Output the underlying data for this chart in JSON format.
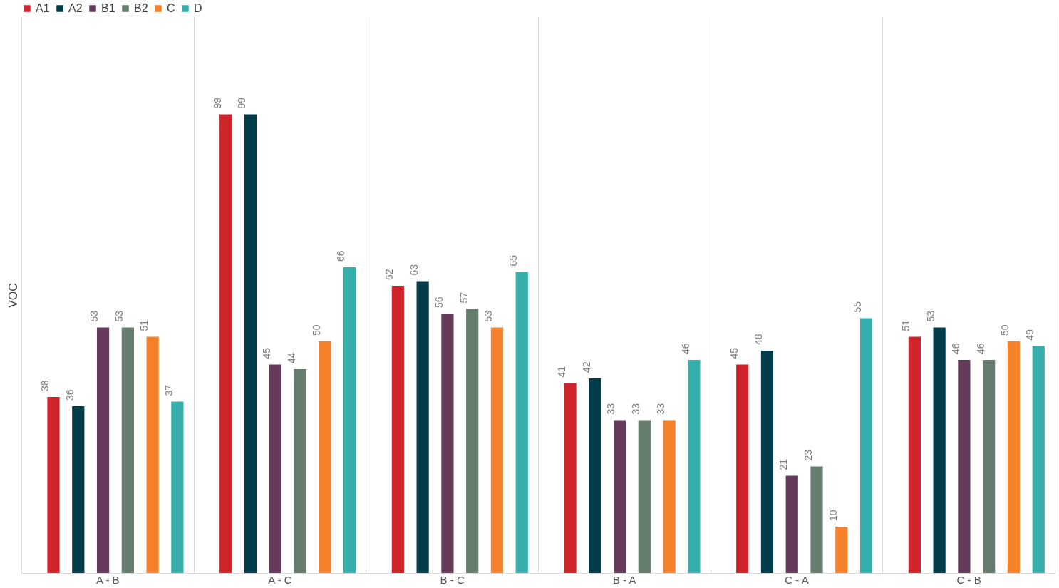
{
  "chart_data": {
    "type": "bar",
    "ylabel": "VOC",
    "categories": [
      "A  -  B",
      "A  -  C",
      "B  -  C",
      "B  -  A",
      "C  -  A",
      "C  -  B"
    ],
    "series": [
      {
        "name": "A1",
        "color": "#d0242b",
        "values": [
          38,
          99,
          62,
          41,
          45,
          51
        ]
      },
      {
        "name": "A2",
        "color": "#003c4a",
        "values": [
          36,
          99,
          63,
          42,
          48,
          53
        ]
      },
      {
        "name": "B1",
        "color": "#663a5a",
        "values": [
          53,
          45,
          56,
          33,
          21,
          46
        ]
      },
      {
        "name": "B2",
        "color": "#677d6e",
        "values": [
          53,
          44,
          57,
          33,
          23,
          46
        ]
      },
      {
        "name": "C",
        "color": "#f5812a",
        "values": [
          51,
          50,
          53,
          33,
          10,
          50
        ]
      },
      {
        "name": "D",
        "color": "#36aeab",
        "values": [
          37,
          66,
          65,
          46,
          55,
          49
        ]
      }
    ],
    "ylim": [
      0,
      120
    ],
    "data_labels": true,
    "grid": "x",
    "legend": "top",
    "tick_labels": "x"
  }
}
